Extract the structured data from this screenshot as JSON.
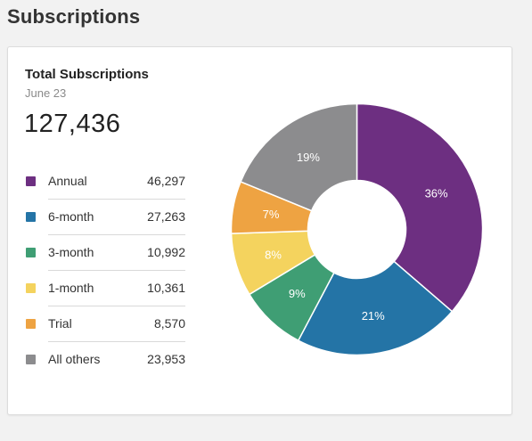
{
  "page": {
    "title": "Subscriptions"
  },
  "card": {
    "title": "Total Subscriptions",
    "date": "June 23",
    "total": "127,436"
  },
  "legend": [
    {
      "label": "Annual",
      "value": "46,297",
      "color": "#6d2f81"
    },
    {
      "label": "6-month",
      "value": "27,263",
      "color": "#2474a6"
    },
    {
      "label": "3-month",
      "value": "10,992",
      "color": "#3f9e74"
    },
    {
      "label": "1-month",
      "value": "10,361",
      "color": "#f4d35e"
    },
    {
      "label": "Trial",
      "value": "8,570",
      "color": "#eea342"
    },
    {
      "label": "All others",
      "value": "23,953",
      "color": "#8c8c8e"
    }
  ],
  "chart_data": {
    "type": "pie",
    "donut": true,
    "categories": [
      "Annual",
      "6-month",
      "3-month",
      "1-month",
      "Trial",
      "All others"
    ],
    "values": [
      46297,
      27263,
      10992,
      10361,
      8570,
      23953
    ],
    "labels": [
      "36%",
      "21%",
      "9%",
      "8%",
      "7%",
      "19%"
    ],
    "colors": [
      "#6d2f81",
      "#2474a6",
      "#3f9e74",
      "#f4d35e",
      "#eea342",
      "#8c8c8e"
    ]
  }
}
